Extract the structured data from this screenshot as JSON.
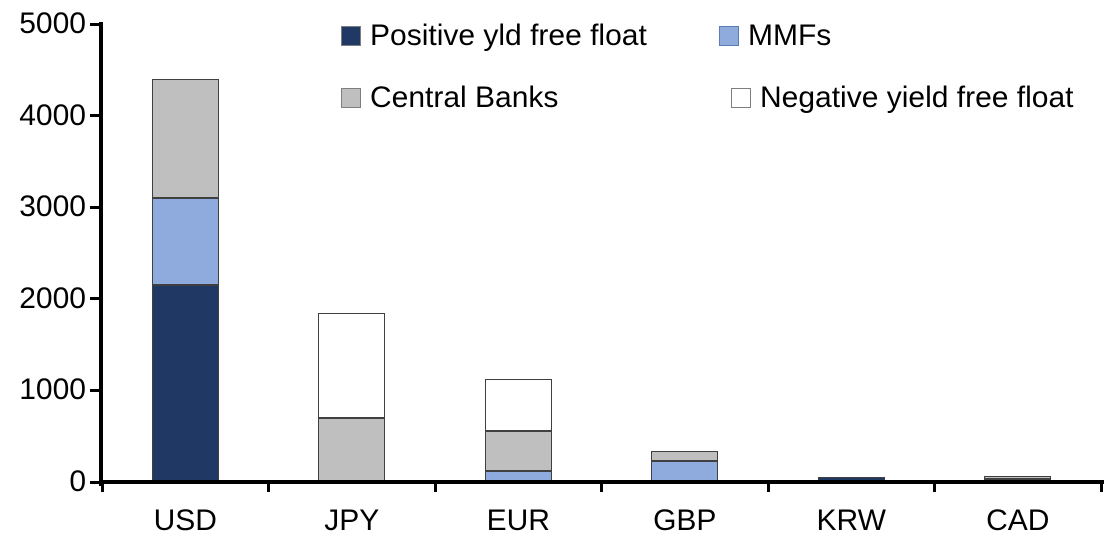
{
  "chart_data": {
    "type": "bar",
    "stacked": true,
    "title": "",
    "xlabel": "",
    "ylabel": "",
    "categories": [
      "USD",
      "JPY",
      "EUR",
      "GBP",
      "KRW",
      "CAD"
    ],
    "series": [
      {
        "name": "Positive yld free float",
        "color": "#1f3864",
        "border": "#7f7f7f",
        "values": [
          2150,
          0,
          0,
          0,
          50,
          30
        ]
      },
      {
        "name": "MMFs",
        "color": "#8faadc",
        "border": "#5b7bb5",
        "values": [
          950,
          0,
          120,
          230,
          0,
          0
        ]
      },
      {
        "name": "Central Banks",
        "color": "#bfbfbf",
        "border": "#7f7f7f",
        "values": [
          1300,
          700,
          440,
          110,
          0,
          40
        ]
      },
      {
        "name": "Negative yield free float",
        "color": "#ffffff",
        "border": "#7f7f7f",
        "values": [
          0,
          1150,
          560,
          0,
          0,
          0
        ]
      }
    ],
    "totals": [
      4400,
      1850,
      1120,
      340,
      50,
      70
    ],
    "ylim": [
      0,
      5000
    ],
    "yticks": [
      0,
      1000,
      2000,
      3000,
      4000,
      5000
    ],
    "ytick_labels": [
      "0",
      "1000",
      "2000",
      "3000",
      "4000",
      "5000"
    ],
    "grid": false,
    "legend_position": "top",
    "legend_rows": 2,
    "colors": {
      "axis": "#000000",
      "text": "#000000",
      "segment_border": "#404040",
      "background": "#ffffff"
    }
  }
}
